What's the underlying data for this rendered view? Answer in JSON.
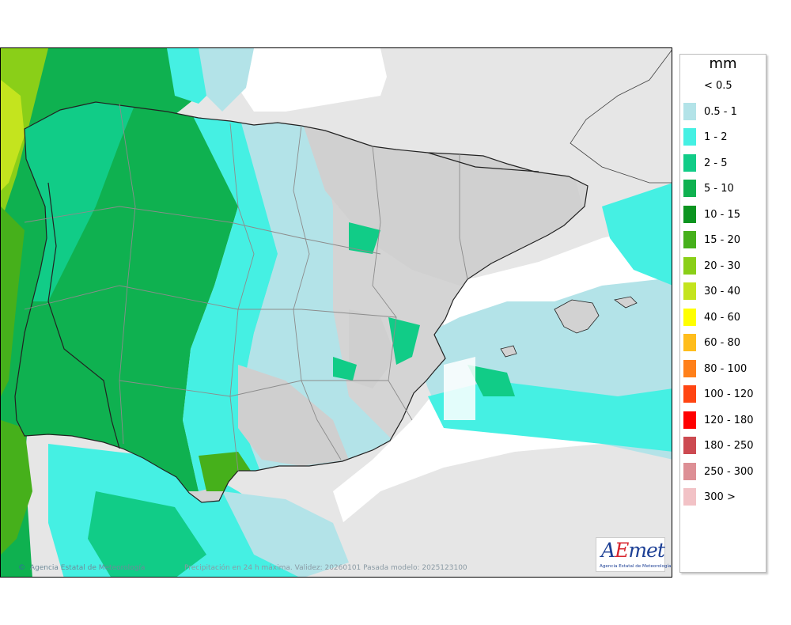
{
  "legend": {
    "unit": "mm",
    "items": [
      {
        "label": "< 0.5",
        "color": "#ffffff"
      },
      {
        "label": "0.5 - 1",
        "color": "#b3e3e8"
      },
      {
        "label": "1 - 2",
        "color": "#45f0e3"
      },
      {
        "label": "2 - 5",
        "color": "#11cc87"
      },
      {
        "label": "5 - 10",
        "color": "#0fb150"
      },
      {
        "label": "10 - 15",
        "color": "#0c9420"
      },
      {
        "label": "15 - 20",
        "color": "#46b01b"
      },
      {
        "label": "20 - 30",
        "color": "#8acf18"
      },
      {
        "label": "30 - 40",
        "color": "#c4e41e"
      },
      {
        "label": "40 - 60",
        "color": "#ffff00"
      },
      {
        "label": "60 - 80",
        "color": "#ffbd1c"
      },
      {
        "label": "80 - 100",
        "color": "#ff801a"
      },
      {
        "label": "100 - 120",
        "color": "#ff4512"
      },
      {
        "label": "120 - 180",
        "color": "#ff0000"
      },
      {
        "label": "180 - 250",
        "color": "#cc4a51"
      },
      {
        "label": "250 - 300",
        "color": "#dd8f95"
      },
      {
        "label": "300 >",
        "color": "#f2c2c6"
      }
    ]
  },
  "footer": {
    "copyright_symbol": "©",
    "credit": "Agencia Estatal de Meteorología",
    "info": "Precipitación en 24 h máxima. Validez: 20260101 Pasada modelo: 2025123100"
  },
  "logo": {
    "word_a": "A",
    "word_e": "E",
    "word_rest": "met",
    "subtitle": "Agencia Estatal de Meteorología"
  },
  "colors": {
    "land_background": "#e6e6e6",
    "sea_dry": "#ffffff",
    "relief_land": "#d2d2d2",
    "borders": "#222222",
    "admin_lines": "#8c8c8c"
  }
}
